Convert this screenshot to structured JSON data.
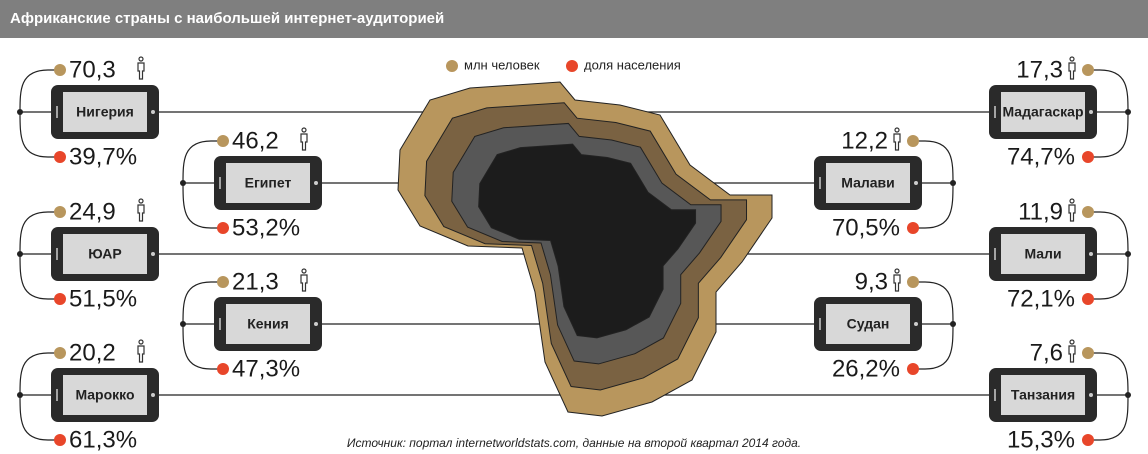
{
  "header": {
    "title": "Африканские страны с наибольшей интернет-аудиторией"
  },
  "legend": {
    "users": "млн человек",
    "share": "доля населения"
  },
  "countries": [
    {
      "name": "Нигерия",
      "users": "70,3",
      "share": "39,7%"
    },
    {
      "name": "ЮАР",
      "users": "24,9",
      "share": "51,5%"
    },
    {
      "name": "Марокко",
      "users": "20,2",
      "share": "61,3%"
    },
    {
      "name": "Египет",
      "users": "46,2",
      "share": "53,2%"
    },
    {
      "name": "Кения",
      "users": "21,3",
      "share": "47,3%"
    },
    {
      "name": "Малави",
      "users": "12,2",
      "share": "70,5%"
    },
    {
      "name": "Судан",
      "users": "9,3",
      "share": "26,2%"
    },
    {
      "name": "Мадагаскар",
      "users": "17,3",
      "share": "74,7%"
    },
    {
      "name": "Мали",
      "users": "11,9",
      "share": "72,1%"
    },
    {
      "name": "Танзания",
      "users": "7,6",
      "share": "15,3%"
    }
  ],
  "source": "Источник: портал internetworldstats.com, данные на второй квартал 2014 года."
}
